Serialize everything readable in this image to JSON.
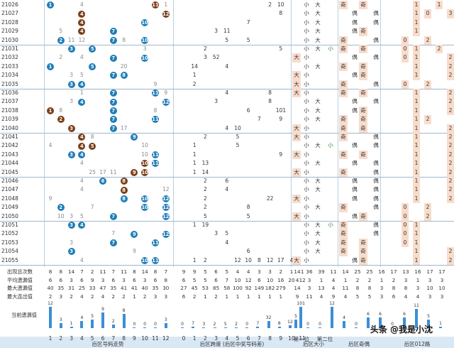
{
  "issues": [
    "21026",
    "21027",
    "21028",
    "21029",
    "21030",
    "21031",
    "21032",
    "21033",
    "21034",
    "21035",
    "21036",
    "21037",
    "21038",
    "21039",
    "21040",
    "21041",
    "21042",
    "21043",
    "21044",
    "21045",
    "21046",
    "21047",
    "21048",
    "21049",
    "21050",
    "21051",
    "21052",
    "21053",
    "21054",
    "21055"
  ],
  "balls": [
    [
      [
        1,
        "1",
        "blue"
      ],
      [
        4,
        "4",
        "plain"
      ],
      [
        11,
        "11",
        "brown"
      ],
      [
        12,
        "1",
        "plain"
      ]
    ],
    [
      [
        4,
        "4",
        "brown"
      ],
      [
        12,
        "12",
        "brown"
      ]
    ],
    [
      [
        4,
        "4",
        "brown"
      ],
      [
        10,
        "10",
        "blue"
      ]
    ],
    [
      [
        2,
        "5",
        "plain"
      ],
      [
        4,
        "4",
        "brown"
      ],
      [
        7,
        "7",
        "blue"
      ]
    ],
    [
      [
        2,
        "2",
        "blue"
      ],
      [
        3,
        "11",
        "plain"
      ],
      [
        4,
        "12",
        "plain"
      ],
      [
        7,
        "7",
        "blue"
      ],
      [
        8,
        "8",
        "plain"
      ],
      [
        10,
        "10",
        "blue"
      ]
    ],
    [
      [
        3,
        "3",
        "blue"
      ],
      [
        5,
        "5",
        "blue"
      ],
      [
        10,
        "3",
        "plain"
      ]
    ],
    [
      [
        2,
        "2",
        "plain"
      ],
      [
        4,
        "4",
        "plain"
      ],
      [
        7,
        "7",
        "blue"
      ],
      [
        10,
        "10",
        "blue"
      ]
    ],
    [
      [
        1,
        "1",
        "blue"
      ],
      [
        5,
        "5",
        "blue"
      ],
      [
        8,
        "20",
        "plain"
      ]
    ],
    [
      [
        3,
        "3",
        "plain"
      ],
      [
        4,
        "5",
        "plain"
      ],
      [
        7,
        "7",
        "blue"
      ],
      [
        8,
        "8",
        "blue"
      ]
    ],
    [
      [
        3,
        "3",
        "blue"
      ],
      [
        4,
        "4",
        "blue"
      ],
      [
        11,
        "9",
        "plain"
      ]
    ],
    [
      [
        4,
        "1",
        "plain"
      ],
      [
        7,
        "7",
        "blue"
      ],
      [
        11,
        "11",
        "blue"
      ],
      [
        12,
        "9",
        "plain"
      ]
    ],
    [
      [
        3,
        "3",
        "plain"
      ],
      [
        4,
        "4",
        "blue"
      ],
      [
        7,
        "7",
        "blue"
      ],
      [
        12,
        "12",
        "blue"
      ]
    ],
    [
      [
        1,
        "1",
        "brown"
      ],
      [
        2,
        "8",
        "plain"
      ],
      [
        7,
        "7",
        "blue"
      ],
      [
        11,
        "8",
        "plain"
      ]
    ],
    [
      [
        2,
        "2",
        "brown"
      ],
      [
        7,
        "7",
        "blue"
      ],
      [
        11,
        "11",
        "blue"
      ]
    ],
    [
      [
        3,
        "3",
        "brown"
      ],
      [
        7,
        "7",
        "blue"
      ],
      [
        8,
        "17",
        "plain"
      ]
    ],
    [
      [
        4,
        "4",
        "brown"
      ],
      [
        5,
        "8",
        "plain"
      ],
      [
        9,
        "9",
        "blue"
      ]
    ],
    [
      [
        1,
        "4",
        "plain"
      ],
      [
        4,
        "4",
        "brown"
      ],
      [
        5,
        "5",
        "brown"
      ],
      [
        10,
        "10",
        "plain"
      ]
    ],
    [
      [
        3,
        "3",
        "blue"
      ],
      [
        4,
        "4",
        "blue"
      ],
      [
        10,
        "10",
        "plain"
      ],
      [
        11,
        "11",
        "blue"
      ]
    ],
    [
      [
        4,
        "4",
        "plain"
      ],
      [
        10,
        "10",
        "brown"
      ],
      [
        11,
        "11",
        "blue"
      ]
    ],
    [
      [
        5,
        "25",
        "plain"
      ],
      [
        6,
        "17",
        "plain"
      ],
      [
        7,
        "11",
        "plain"
      ],
      [
        9,
        "9",
        "brown"
      ],
      [
        10,
        "10",
        "brown"
      ]
    ],
    [
      [
        4,
        "4",
        "plain"
      ],
      [
        6,
        "6",
        "blue"
      ],
      [
        8,
        "8",
        "brown"
      ]
    ],
    [
      [
        4,
        "4",
        "plain"
      ],
      [
        8,
        "8",
        "brown"
      ],
      [
        12,
        "12",
        "plain"
      ]
    ],
    [
      [
        1,
        "9",
        "plain"
      ],
      [
        8,
        "8",
        "blue"
      ],
      [
        10,
        "10",
        "blue"
      ],
      [
        12,
        "12",
        "blue"
      ]
    ],
    [
      [
        2,
        "2",
        "blue"
      ],
      [
        5,
        "7",
        "plain"
      ],
      [
        10,
        "10",
        "blue"
      ],
      [
        12,
        "12",
        "blue"
      ]
    ],
    [
      [
        2,
        "10",
        "plain"
      ],
      [
        3,
        "3",
        "plain"
      ],
      [
        4,
        "5",
        "plain"
      ],
      [
        7,
        "7",
        "blue"
      ],
      [
        12,
        "12",
        "blue"
      ]
    ],
    [
      [
        3,
        "3",
        "blue"
      ],
      [
        4,
        "4",
        "blue"
      ]
    ],
    [
      [
        7,
        "7",
        "plain"
      ],
      [
        9,
        "9",
        "blue"
      ],
      [
        12,
        "12",
        "blue"
      ]
    ],
    [
      [
        3,
        "3",
        "plain"
      ],
      [
        7,
        "7",
        "blue"
      ],
      [
        11,
        "11",
        "blue"
      ]
    ],
    [
      [
        3,
        "3",
        "blue"
      ],
      [
        9,
        "9",
        "plain"
      ]
    ],
    [
      [
        4,
        "4",
        "plain"
      ],
      [
        10,
        "10",
        "blue"
      ],
      [
        11,
        "11",
        "blue"
      ]
    ]
  ],
  "span": [
    [
      [
        8,
        "2"
      ],
      [
        9,
        "10"
      ]
    ],
    [
      [
        9,
        "8"
      ]
    ],
    [
      [
        6,
        "7"
      ]
    ],
    [
      [
        3,
        "3"
      ],
      [
        4,
        "11"
      ]
    ],
    [
      [
        4,
        "5"
      ],
      [
        6,
        "5"
      ]
    ],
    [
      [
        2,
        "2"
      ],
      [
        9,
        "5"
      ]
    ],
    [
      [
        2,
        "3"
      ],
      [
        3,
        "52"
      ]
    ],
    [
      [
        1,
        "14"
      ],
      [
        4,
        "4"
      ]
    ],
    [
      [
        1,
        "1"
      ]
    ],
    [
      [
        1,
        "2"
      ]
    ],
    [
      [
        4,
        "4"
      ],
      [
        8,
        "8"
      ]
    ],
    [
      [
        3,
        "3"
      ],
      [
        8,
        "8"
      ]
    ],
    [
      [
        6,
        "6"
      ],
      [
        9,
        "101"
      ]
    ],
    [
      [
        7,
        "7"
      ],
      [
        9,
        "9"
      ]
    ],
    [
      [
        4,
        "4"
      ],
      [
        5,
        "10"
      ]
    ],
    [
      [
        2,
        "2"
      ],
      [
        5,
        "5"
      ]
    ],
    [
      [
        1,
        "1"
      ],
      [
        5,
        "5"
      ]
    ],
    [
      [
        1,
        "1"
      ],
      [
        9,
        "9"
      ]
    ],
    [
      [
        1,
        "1"
      ],
      [
        2,
        "13"
      ]
    ],
    [
      [
        1,
        "1"
      ],
      [
        2,
        "14"
      ]
    ],
    [
      [
        2,
        "2"
      ],
      [
        4,
        "6"
      ]
    ],
    [
      [
        2,
        "2"
      ],
      [
        4,
        "4"
      ]
    ],
    [
      [
        2,
        "2"
      ],
      [
        8,
        "22"
      ]
    ],
    [
      [
        2,
        "2"
      ],
      [
        6,
        "8"
      ]
    ],
    [
      [
        2,
        "5"
      ],
      [
        6,
        "5"
      ]
    ],
    [
      [
        1,
        "1"
      ],
      [
        2,
        "19"
      ]
    ],
    [
      [
        3,
        "3"
      ],
      [
        4,
        "5"
      ]
    ],
    [
      [
        4,
        "4"
      ]
    ],
    [
      [
        6,
        "6"
      ]
    ],
    [
      [
        1,
        "1"
      ],
      [
        2,
        "2"
      ],
      [
        5,
        "12"
      ],
      [
        6,
        "10"
      ],
      [
        7,
        "8"
      ],
      [
        8,
        "12"
      ],
      [
        9,
        "17"
      ],
      [
        10,
        "4"
      ]
    ]
  ],
  "size": [
    [
      "",
      "小",
      "大",
      ""
    ],
    [
      "",
      "小",
      "大",
      ""
    ],
    [
      "",
      "小",
      "大",
      ""
    ],
    [
      "",
      "小",
      "大",
      ""
    ],
    [
      "",
      "小",
      "大",
      ""
    ],
    [
      "",
      "小",
      "大",
      "小"
    ],
    [
      "大",
      "小",
      "",
      ""
    ],
    [
      "",
      "小",
      "大",
      ""
    ],
    [
      "大",
      "小",
      "",
      ""
    ],
    [
      "大",
      "小",
      "",
      ""
    ],
    [
      "大",
      "小",
      "",
      ""
    ],
    [
      "",
      "小",
      "大",
      ""
    ],
    [
      "",
      "小",
      "大",
      ""
    ],
    [
      "",
      "小",
      "大",
      ""
    ],
    [
      "大",
      "小",
      "",
      ""
    ],
    [
      "大",
      "小",
      "",
      ""
    ],
    [
      "",
      "小",
      "大",
      "小"
    ],
    [
      "大",
      "小",
      "",
      ""
    ],
    [
      "",
      "小",
      "大",
      ""
    ],
    [
      "大",
      "小",
      "",
      ""
    ],
    [
      "",
      "小",
      "大",
      ""
    ],
    [
      "",
      "小",
      "大",
      ""
    ],
    [
      "大",
      "小",
      "",
      ""
    ],
    [
      "",
      "小",
      "大",
      ""
    ],
    [
      "大",
      "小",
      "",
      ""
    ],
    [
      "",
      "小",
      "大",
      "小"
    ],
    [
      "",
      "小",
      "大",
      ""
    ],
    [
      "",
      "小",
      "大",
      ""
    ],
    [
      "",
      "小",
      "大",
      ""
    ],
    [
      "大",
      "小",
      "",
      ""
    ]
  ],
  "parity": [
    [
      "奇",
      "",
      "奇",
      ""
    ],
    [
      "",
      "偶",
      "",
      "偶"
    ],
    [
      "",
      "偶",
      "",
      "偶"
    ],
    [
      "",
      "偶",
      "奇",
      ""
    ],
    [
      "奇",
      "",
      "",
      "偶"
    ],
    [
      "奇",
      "",
      "奇",
      ""
    ],
    [
      "",
      "偶",
      "",
      "偶"
    ],
    [
      "奇",
      "",
      "奇",
      ""
    ],
    [
      "",
      "偶",
      "奇",
      ""
    ],
    [
      "奇",
      "",
      "",
      "偶"
    ],
    [
      "奇",
      "",
      "奇",
      ""
    ],
    [
      "",
      "偶",
      "",
      "偶"
    ],
    [
      "",
      "偶",
      "奇",
      ""
    ],
    [
      "奇",
      "",
      "奇",
      ""
    ],
    [
      "奇",
      "",
      "奇",
      ""
    ],
    [
      "奇",
      "",
      "",
      "偶"
    ],
    [
      "",
      "偶",
      "",
      "偶"
    ],
    [
      "奇",
      "",
      "奇",
      ""
    ],
    [
      "",
      "偶",
      "",
      "偶"
    ],
    [
      "奇",
      "",
      "",
      "偶"
    ],
    [
      "",
      "偶",
      "",
      "偶"
    ],
    [
      "",
      "偶",
      "",
      "偶"
    ],
    [
      "",
      "偶",
      "",
      "偶"
    ],
    [
      "奇",
      "",
      "",
      "偶"
    ],
    [
      "",
      "偶",
      "奇",
      ""
    ],
    [
      "奇",
      "",
      "",
      "偶"
    ],
    [
      "奇",
      "",
      "",
      "偶"
    ],
    [
      "奇",
      "",
      "奇",
      ""
    ],
    [
      "奇",
      "",
      "奇",
      ""
    ],
    [
      "",
      "偶",
      "奇",
      ""
    ]
  ],
  "route": [
    [
      [
        4,
        "1"
      ],
      [
        6,
        "1"
      ]
    ],
    [
      [
        4,
        "1"
      ],
      [
        5,
        "0"
      ],
      [
        7,
        "3"
      ]
    ],
    [
      [
        4,
        "1"
      ]
    ],
    [
      [
        4,
        "1"
      ]
    ],
    [
      [
        3,
        "0"
      ],
      [
        5,
        "2"
      ]
    ],
    [
      [
        3,
        "0"
      ],
      [
        4,
        "1"
      ],
      [
        6,
        "2"
      ]
    ],
    [
      [
        3,
        "0"
      ],
      [
        4,
        "1"
      ],
      [
        7,
        "2"
      ]
    ],
    [
      [
        4,
        "1"
      ],
      [
        7,
        "2"
      ]
    ],
    [
      [
        4,
        "1"
      ],
      [
        7,
        "2"
      ]
    ],
    [
      [
        3,
        "0"
      ],
      [
        5,
        "2"
      ]
    ],
    [
      [
        4,
        "1"
      ],
      [
        7,
        "2"
      ]
    ],
    [
      [
        4,
        "1"
      ],
      [
        7,
        "2"
      ]
    ],
    [
      [
        4,
        "1"
      ],
      [
        7,
        "2"
      ]
    ],
    [
      [
        4,
        "1"
      ],
      [
        5,
        "2"
      ]
    ],
    [
      [
        4,
        "1"
      ],
      [
        7,
        "2"
      ]
    ],
    [
      [
        4,
        "1"
      ],
      [
        7,
        "2"
      ]
    ],
    [
      [
        4,
        "1"
      ],
      [
        7,
        "2"
      ]
    ],
    [
      [
        4,
        "1"
      ],
      [
        7,
        "2"
      ]
    ],
    [
      [
        4,
        "1"
      ],
      [
        7,
        "2"
      ]
    ],
    [
      [
        4,
        "1"
      ],
      [
        7,
        "2"
      ]
    ],
    [
      [
        4,
        "1"
      ],
      [
        7,
        "2"
      ]
    ],
    [
      [
        4,
        "1"
      ],
      [
        7,
        "2"
      ]
    ],
    [
      [
        4,
        "1"
      ],
      [
        7,
        "2"
      ]
    ],
    [
      [
        3,
        "0"
      ],
      [
        5,
        "2"
      ]
    ],
    [
      [
        3,
        "0"
      ],
      [
        5,
        "2"
      ]
    ],
    [
      [
        3,
        "0"
      ],
      [
        4,
        "1"
      ]
    ],
    [
      [
        3,
        "0"
      ],
      [
        4,
        "1"
      ]
    ],
    [
      [
        3,
        "0"
      ],
      [
        4,
        "1"
      ]
    ],
    [
      [
        4,
        "1"
      ],
      [
        7,
        "2"
      ]
    ],
    [
      [
        4,
        "1"
      ],
      [
        7,
        "2"
      ]
    ]
  ],
  "stats": {
    "labels": [
      "出现总次数",
      "平均遗漏值",
      "最大遗漏值",
      "最大连出值",
      "当前遗漏值"
    ],
    "back_rows": [
      [
        "8",
        "8",
        "14",
        "7",
        "2",
        "11",
        "7",
        "11",
        "8",
        "14",
        "8",
        "7"
      ],
      [
        "6",
        "6",
        "3",
        "6",
        "9",
        "3",
        "6",
        "3",
        "6",
        "3",
        "6",
        "8"
      ],
      [
        "40",
        "35",
        "31",
        "25",
        "33",
        "47",
        "35",
        "41",
        "41",
        "40",
        "35",
        "30"
      ],
      [
        "2",
        "3",
        "2",
        "4",
        "2",
        "4",
        "2",
        "2",
        "1",
        "2",
        "3",
        "3"
      ]
    ],
    "span_rows": [
      [
        "9",
        "9",
        "5",
        "6",
        "5",
        "4",
        "4",
        "3",
        "3",
        "2",
        "1",
        "1"
      ],
      [
        "6",
        "5",
        "5",
        "6",
        "7",
        "10",
        "12",
        "6",
        "10",
        "16",
        "20",
        "12"
      ],
      [
        "27",
        "45",
        "53",
        "85",
        "58",
        "100",
        "92",
        "149",
        "182",
        "279",
        "",
        ""
      ],
      [
        "6",
        "2",
        "1",
        "2",
        "1",
        "1",
        "1",
        "1",
        "1",
        "1",
        "",
        ""
      ]
    ],
    "tail_rows": [
      [
        "14",
        "36",
        "39",
        "11",
        "14",
        "25",
        "25",
        "16",
        "17",
        "13",
        "16",
        "17",
        "17"
      ],
      [
        "4",
        "3",
        "1",
        "4",
        "1",
        "2",
        "2",
        "1",
        "2",
        "3",
        "1",
        "3",
        "3"
      ],
      [
        "14",
        "3",
        "13",
        "4",
        "11",
        "8",
        "8",
        "3",
        "8",
        "8",
        "3",
        "10",
        "10"
      ],
      [
        "9",
        "11",
        "4",
        "9",
        "4",
        "5",
        "5",
        "3",
        "6",
        "4",
        "4",
        "3",
        "3"
      ]
    ],
    "current_back": [
      "12",
      "3",
      "1",
      "4",
      "5",
      "9",
      "2",
      "8",
      "0",
      "0",
      "0",
      "3"
    ],
    "current_span": [
      "0",
      "7",
      "3",
      "2",
      "5",
      "2",
      "0",
      "7",
      "32",
      "8",
      "12",
      "101"
    ],
    "current_tail": [
      "5",
      "0",
      "0",
      "12",
      "4",
      "0",
      "6",
      "6",
      "0",
      "6",
      "11",
      "5",
      "1"
    ]
  },
  "footer": {
    "numbers_back": [
      "1",
      "2",
      "3",
      "4",
      "5",
      "6",
      "7",
      "8",
      "9",
      "10",
      "11",
      "12"
    ],
    "numbers_span": [
      "0",
      "1",
      "2",
      "3",
      "4",
      "5",
      "6",
      "7",
      "8",
      "9",
      "10",
      "11"
    ],
    "label_back": "后区号码走势",
    "label_span": "后区跨度 (后区中奖号码差)",
    "label_first": "第一位",
    "label_second": "第二位",
    "label_size": "后区大小",
    "label_parity": "后区奇偶",
    "label_route": "后区012路"
  },
  "watermark": "头条 @我是小沈",
  "colors": {
    "blue_ball": "#1f7db8",
    "brown_ball": "#7a3f1a",
    "peach": "#f8dccb",
    "footer": "#d9e8f5",
    "bar": "#3b8ed6"
  }
}
